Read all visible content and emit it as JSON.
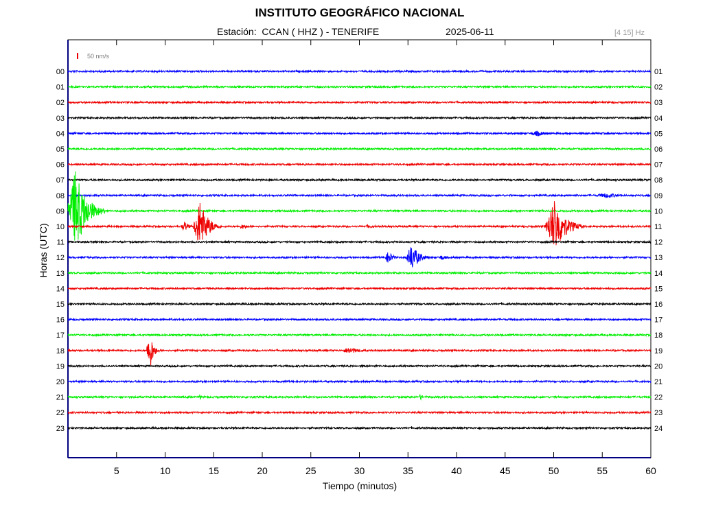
{
  "chart_data": {
    "type": "line",
    "title": "INSTITUTO GEOGRÁFICO NACIONAL",
    "station": "Estación:  CCAN ( HHZ ) - TENERIFE",
    "date": "2025-06-11",
    "filter": "[4 15] Hz",
    "scale_label": "50 nm/s",
    "xlabel": "Tiempo (minutos)",
    "ylabel": "Horas (UTC)",
    "xlim": [
      0,
      60
    ],
    "xticks": [
      5,
      10,
      15,
      20,
      25,
      30,
      35,
      40,
      45,
      50,
      55,
      60
    ],
    "left_labels": [
      "00",
      "01",
      "02",
      "03",
      "04",
      "05",
      "06",
      "07",
      "08",
      "09",
      "10",
      "11",
      "12",
      "13",
      "14",
      "15",
      "16",
      "17",
      "18",
      "19",
      "20",
      "21",
      "22",
      "23"
    ],
    "right_labels": [
      "01",
      "02",
      "03",
      "04",
      "05",
      "06",
      "07",
      "08",
      "09",
      "10",
      "11",
      "12",
      "13",
      "14",
      "15",
      "16",
      "17",
      "18",
      "19",
      "20",
      "21",
      "22",
      "23",
      "24"
    ],
    "trace_colors": [
      "#0000ff",
      "#00ee00",
      "#ee0000",
      "#000000"
    ],
    "events": [
      {
        "hour": 0,
        "minute": 6.7,
        "amplitude": 2,
        "duration": 0.5
      },
      {
        "hour": 0,
        "minute": 9.2,
        "amplitude": 2,
        "duration": 0.3
      },
      {
        "hour": 0,
        "minute": 25.3,
        "amplitude": 4,
        "duration": 0.3
      },
      {
        "hour": 2,
        "minute": 36.4,
        "amplitude": 2,
        "duration": 0.2
      },
      {
        "hour": 4,
        "minute": 48.3,
        "amplitude": 4,
        "duration": 3
      },
      {
        "hour": 8,
        "minute": 55.5,
        "amplitude": 4,
        "duration": 4
      },
      {
        "hour": 9,
        "minute": 0.8,
        "amplitude": 60,
        "duration": 3
      },
      {
        "hour": 10,
        "minute": 12.0,
        "amplitude": 8,
        "duration": 1.2
      },
      {
        "hour": 10,
        "minute": 13.6,
        "amplitude": 38,
        "duration": 2.2
      },
      {
        "hour": 10,
        "minute": 18.0,
        "amplitude": 4,
        "duration": 1.5
      },
      {
        "hour": 10,
        "minute": 31.0,
        "amplitude": 3,
        "duration": 1.5
      },
      {
        "hour": 10,
        "minute": 50.1,
        "amplitude": 40,
        "duration": 3
      },
      {
        "hour": 12,
        "minute": 33.0,
        "amplitude": 10,
        "duration": 1.2
      },
      {
        "hour": 12,
        "minute": 35.4,
        "amplitude": 20,
        "duration": 2
      },
      {
        "hour": 12,
        "minute": 38.5,
        "amplitude": 4,
        "duration": 1.5
      },
      {
        "hour": 18,
        "minute": 8.4,
        "amplitude": 32,
        "duration": 1
      },
      {
        "hour": 18,
        "minute": 29.0,
        "amplitude": 5,
        "duration": 3
      },
      {
        "hour": 21,
        "minute": 13.6,
        "amplitude": 4,
        "duration": 0.4
      },
      {
        "hour": 21,
        "minute": 36.3,
        "amplitude": 6,
        "duration": 0.5
      },
      {
        "hour": 21,
        "minute": 50.2,
        "amplitude": 3,
        "duration": 0.3
      }
    ]
  }
}
